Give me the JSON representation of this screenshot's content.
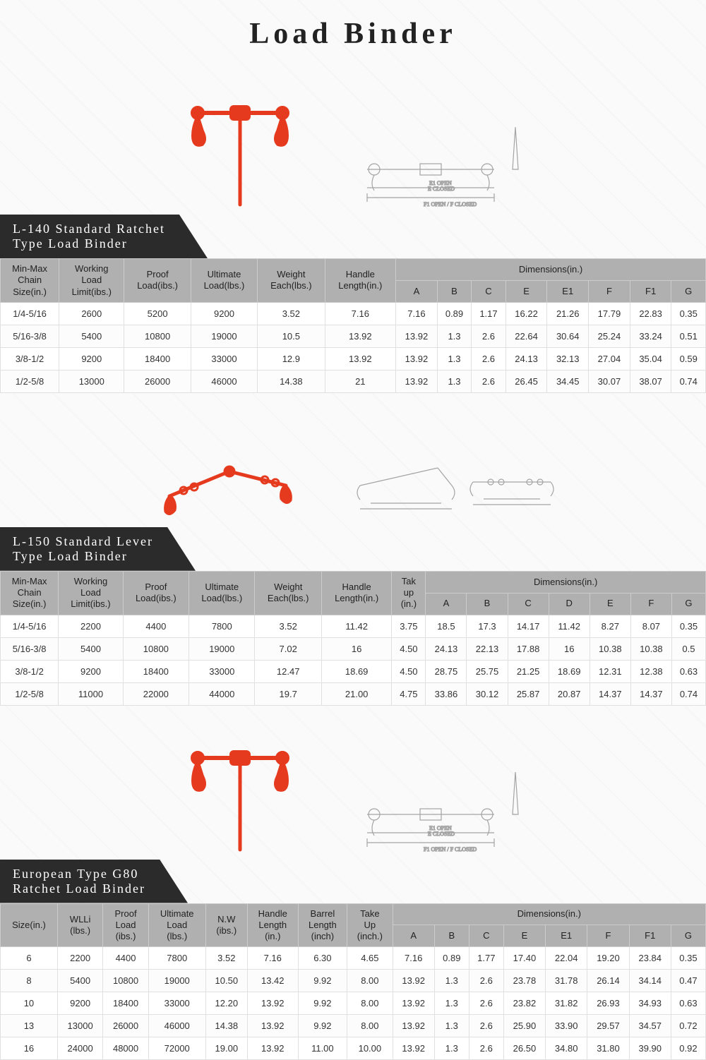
{
  "page_title": "Load Binder",
  "colors": {
    "header_bg": "#2b2b2b",
    "header_fg": "#ffffff",
    "th_bg": "#b0b0b0",
    "border": "#e0e0e0",
    "product_red": "#e63a1f",
    "diagram_stroke": "#888888"
  },
  "sections": [
    {
      "title_line1": "L-140 Standard Ratchet",
      "title_line2": "Type Load Binder",
      "columns_main": [
        "Min-Max\nChain\nSize(in.)",
        "Working\nLoad\nLimit(ibs.)",
        "Proof\nLoad(ibs.)",
        "Ultimate\nLoad(lbs.)",
        "Weight\nEach(lbs.)",
        "Handle\nLength(in.)"
      ],
      "dim_header": "Dimensions(in.)",
      "dim_cols": [
        "A",
        "B",
        "C",
        "E",
        "E1",
        "F",
        "F1",
        "G"
      ],
      "rows": [
        [
          "1/4-5/16",
          "2600",
          "5200",
          "9200",
          "3.52",
          "7.16",
          "7.16",
          "0.89",
          "1.17",
          "16.22",
          "21.26",
          "17.79",
          "22.83",
          "0.35"
        ],
        [
          "5/16-3/8",
          "5400",
          "10800",
          "19000",
          "10.5",
          "13.92",
          "13.92",
          "1.3",
          "2.6",
          "22.64",
          "30.64",
          "25.24",
          "33.24",
          "0.51"
        ],
        [
          "3/8-1/2",
          "9200",
          "18400",
          "33000",
          "12.9",
          "13.92",
          "13.92",
          "1.3",
          "2.6",
          "24.13",
          "32.13",
          "27.04",
          "35.04",
          "0.59"
        ],
        [
          "1/2-5/8",
          "13000",
          "26000",
          "46000",
          "14.38",
          "21",
          "13.92",
          "1.3",
          "2.6",
          "26.45",
          "34.45",
          "30.07",
          "38.07",
          "0.74"
        ]
      ]
    },
    {
      "title_line1": "L-150 Standard Lever",
      "title_line2": "Type Load Binder",
      "columns_main": [
        "Min-Max\nChain\nSize(in.)",
        "Working\nLoad\nLimit(ibs.)",
        "Proof\nLoad(ibs.)",
        "Ultimate\nLoad(lbs.)",
        "Weight\nEach(lbs.)",
        "Handle\nLength(in.)",
        "Tak\nup\n(in.)"
      ],
      "dim_header": "Dimensions(in.)",
      "dim_cols": [
        "A",
        "B",
        "C",
        "D",
        "E",
        "F",
        "G"
      ],
      "rows": [
        [
          "1/4-5/16",
          "2200",
          "4400",
          "7800",
          "3.52",
          "11.42",
          "3.75",
          "18.5",
          "17.3",
          "14.17",
          "11.42",
          "8.27",
          "8.07",
          "0.35"
        ],
        [
          "5/16-3/8",
          "5400",
          "10800",
          "19000",
          "7.02",
          "16",
          "4.50",
          "24.13",
          "22.13",
          "17.88",
          "16",
          "10.38",
          "10.38",
          "0.5"
        ],
        [
          "3/8-1/2",
          "9200",
          "18400",
          "33000",
          "12.47",
          "18.69",
          "4.50",
          "28.75",
          "25.75",
          "21.25",
          "18.69",
          "12.31",
          "12.38",
          "0.63"
        ],
        [
          "1/2-5/8",
          "11000",
          "22000",
          "44000",
          "19.7",
          "21.00",
          "4.75",
          "33.86",
          "30.12",
          "25.87",
          "20.87",
          "14.37",
          "14.37",
          "0.74"
        ]
      ]
    },
    {
      "title_line1": "European Type G80",
      "title_line2": "Ratchet Load Binder",
      "columns_main": [
        "Size(in.)",
        "WLLi\n(lbs.)",
        "Proof\nLoad\n(ibs.)",
        "Ultimate\nLoad\n(lbs.)",
        "N.W\n(ibs.)",
        "Handle\nLength\n(in.)",
        "Barrel\nLength\n(inch)",
        "Take\nUp\n(inch.)"
      ],
      "dim_header": "Dimensions(in.)",
      "dim_cols": [
        "A",
        "B",
        "C",
        "E",
        "E1",
        "F",
        "F1",
        "G"
      ],
      "rows": [
        [
          "6",
          "2200",
          "4400",
          "7800",
          "3.52",
          "7.16",
          "6.30",
          "4.65",
          "7.16",
          "0.89",
          "1.77",
          "17.40",
          "22.04",
          "19.20",
          "23.84",
          "0.35"
        ],
        [
          "8",
          "5400",
          "10800",
          "19000",
          "10.50",
          "13.42",
          "9.92",
          "8.00",
          "13.92",
          "1.3",
          "2.6",
          "23.78",
          "31.78",
          "26.14",
          "34.14",
          "0.47"
        ],
        [
          "10",
          "9200",
          "18400",
          "33000",
          "12.20",
          "13.92",
          "9.92",
          "8.00",
          "13.92",
          "1.3",
          "2.6",
          "23.82",
          "31.82",
          "26.93",
          "34.93",
          "0.63"
        ],
        [
          "13",
          "13000",
          "26000",
          "46000",
          "14.38",
          "13.92",
          "9.92",
          "8.00",
          "13.92",
          "1.3",
          "2.6",
          "25.90",
          "33.90",
          "29.57",
          "34.57",
          "0.72"
        ],
        [
          "16",
          "24000",
          "48000",
          "72000",
          "19.00",
          "13.92",
          "11.00",
          "10.00",
          "13.92",
          "1.3",
          "2.6",
          "26.50",
          "34.80",
          "31.80",
          "39.90",
          "0.92"
        ]
      ]
    }
  ]
}
